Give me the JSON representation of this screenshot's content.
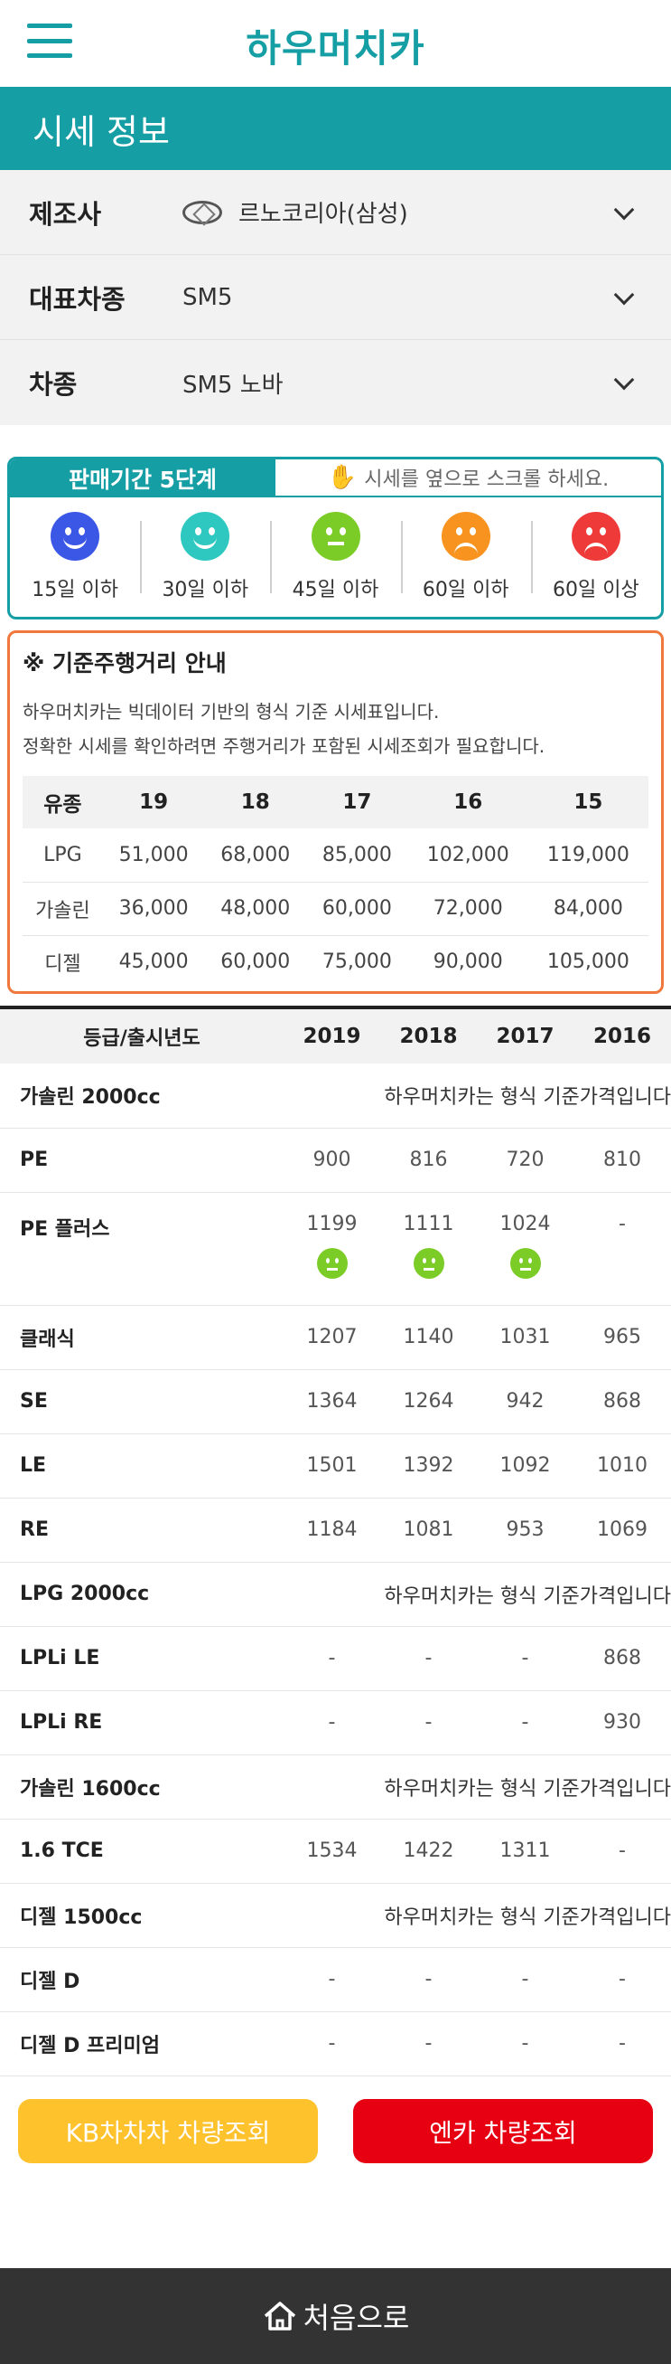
{
  "header": {
    "logo": "하우머치카",
    "menu_icon": "hamburger-icon"
  },
  "section_title": "시세 정보",
  "filters": [
    {
      "label": "제조사",
      "value": "르노코리아(삼성)",
      "icon": "renault-logo-icon"
    },
    {
      "label": "대표차종",
      "value": "SM5"
    },
    {
      "label": "차종",
      "value": "SM5 노바"
    }
  ],
  "period": {
    "tab": "판매기간 5단계",
    "hint": "시세를 옆으로 스크롤 하세요.",
    "stages": [
      {
        "label": "15일 이하",
        "color": "#3b57e6",
        "mood": "very-happy"
      },
      {
        "label": "30일 이하",
        "color": "#2ec8c0",
        "mood": "happy"
      },
      {
        "label": "45일 이하",
        "color": "#7ccc28",
        "mood": "neutral"
      },
      {
        "label": "60일 이하",
        "color": "#f7931e",
        "mood": "sad"
      },
      {
        "label": "60일 이상",
        "color": "#ef3a3a",
        "mood": "angry"
      }
    ]
  },
  "guide": {
    "title": "※ 기준주행거리 안내",
    "line1": "하우머치카는 빅데이터 기반의 형식 기준 시세표입니다.",
    "line2": "정확한 시세를 확인하려면 주행거리가 포함된 시세조회가 필요합니다.",
    "headers": [
      "유종",
      "19",
      "18",
      "17",
      "16",
      "15"
    ],
    "rows": [
      [
        "LPG",
        "51,000",
        "68,000",
        "85,000",
        "102,000",
        "119,000"
      ],
      [
        "가솔린",
        "36,000",
        "48,000",
        "60,000",
        "72,000",
        "84,000"
      ],
      [
        "디젤",
        "45,000",
        "60,000",
        "75,000",
        "90,000",
        "105,000"
      ]
    ]
  },
  "price_table": {
    "headers": [
      "등급/출시년도",
      "2019",
      "2018",
      "2017",
      "2016"
    ],
    "note": "하우머치카는 형식 기준가격입니다",
    "rows": [
      {
        "name": "가솔린 2000cc",
        "group": true
      },
      {
        "name": "PE",
        "values": [
          "900",
          "816",
          "720",
          "810"
        ]
      },
      {
        "name": "PE 플러스",
        "values": [
          "1199",
          "1111",
          "1024",
          "-"
        ],
        "faces": [
          true,
          true,
          true,
          false
        ]
      },
      {
        "name": "클래식",
        "values": [
          "1207",
          "1140",
          "1031",
          "965"
        ]
      },
      {
        "name": "SE",
        "values": [
          "1364",
          "1264",
          "942",
          "868"
        ]
      },
      {
        "name": "LE",
        "values": [
          "1501",
          "1392",
          "1092",
          "1010"
        ]
      },
      {
        "name": "RE",
        "values": [
          "1184",
          "1081",
          "953",
          "1069"
        ]
      },
      {
        "name": "LPG 2000cc",
        "group": true
      },
      {
        "name": "LPLi LE",
        "values": [
          "-",
          "-",
          "-",
          "868"
        ]
      },
      {
        "name": "LPLi RE",
        "values": [
          "-",
          "-",
          "-",
          "930"
        ]
      },
      {
        "name": "가솔린 1600cc",
        "group": true
      },
      {
        "name": "1.6 TCE",
        "values": [
          "1534",
          "1422",
          "1311",
          "-"
        ]
      },
      {
        "name": "디젤 1500cc",
        "group": true
      },
      {
        "name": "디젤 D",
        "values": [
          "-",
          "-",
          "-",
          "-"
        ]
      },
      {
        "name": "디젤 D 프리미엄",
        "values": [
          "-",
          "-",
          "-",
          "-"
        ]
      }
    ]
  },
  "buttons": {
    "kb": "KB차차차 차량조회",
    "encar": "엔카 차량조회"
  },
  "footer": {
    "label": "처음으로"
  }
}
